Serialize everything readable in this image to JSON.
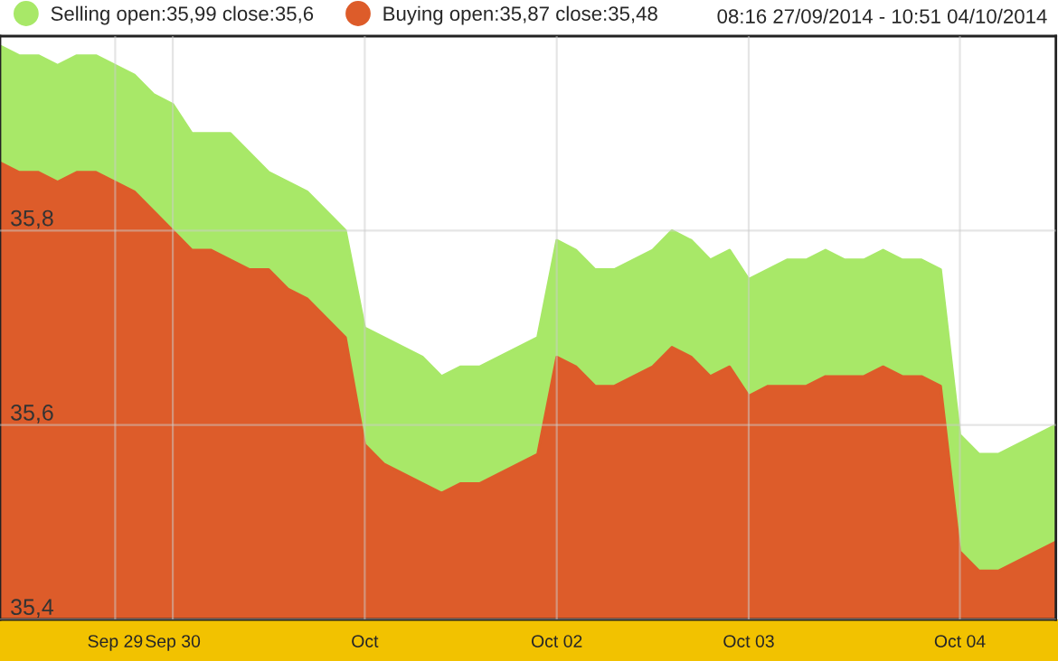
{
  "chart_data": {
    "type": "area",
    "subtitle": "08:16 27/09/2014 - 10:51 04/10/2014",
    "categories": [
      null,
      null,
      null,
      null,
      null,
      null,
      "Sep 29",
      null,
      null,
      "Sep 30",
      null,
      null,
      null,
      null,
      null,
      null,
      null,
      null,
      null,
      "Oct",
      null,
      null,
      null,
      null,
      null,
      null,
      null,
      null,
      null,
      "Oct 02",
      null,
      null,
      null,
      null,
      null,
      null,
      null,
      null,
      null,
      "Oct 03",
      null,
      null,
      null,
      null,
      null,
      null,
      null,
      null,
      null,
      null,
      "Oct 04",
      null,
      null,
      null,
      null,
      null
    ],
    "series": [
      {
        "name": "Selling open:35,99 close:35,6",
        "color": "#a8e868",
        "values": [
          35.99,
          35.98,
          35.98,
          35.97,
          35.98,
          35.98,
          35.97,
          35.96,
          35.94,
          35.93,
          35.9,
          35.9,
          35.9,
          35.88,
          35.86,
          35.85,
          35.84,
          35.82,
          35.8,
          35.7,
          35.69,
          35.68,
          35.67,
          35.65,
          35.66,
          35.66,
          35.67,
          35.68,
          35.69,
          35.79,
          35.78,
          35.76,
          35.76,
          35.77,
          35.78,
          35.8,
          35.79,
          35.77,
          35.78,
          35.75,
          35.76,
          35.77,
          35.77,
          35.78,
          35.77,
          35.77,
          35.78,
          35.77,
          35.77,
          35.76,
          35.59,
          35.57,
          35.57,
          35.58,
          35.59,
          35.6
        ]
      },
      {
        "name": "Buying open:35,87 close:35,48",
        "color": "#dd5c2a",
        "values": [
          35.87,
          35.86,
          35.86,
          35.85,
          35.86,
          35.86,
          35.85,
          35.84,
          35.82,
          35.8,
          35.78,
          35.78,
          35.77,
          35.76,
          35.76,
          35.74,
          35.73,
          35.71,
          35.69,
          35.58,
          35.56,
          35.55,
          35.54,
          35.53,
          35.54,
          35.54,
          35.55,
          35.56,
          35.57,
          35.67,
          35.66,
          35.64,
          35.64,
          35.65,
          35.66,
          35.68,
          35.67,
          35.65,
          35.66,
          35.63,
          35.64,
          35.64,
          35.64,
          35.65,
          35.65,
          35.65,
          35.66,
          35.65,
          35.65,
          35.64,
          35.47,
          35.45,
          35.45,
          35.46,
          35.47,
          35.48
        ]
      }
    ],
    "ylim": [
      35.4,
      36.0
    ],
    "yticks": [
      {
        "value": 35.4,
        "label": "35,4"
      },
      {
        "value": 35.6,
        "label": "35,6"
      },
      {
        "value": 35.8,
        "label": "35,8"
      }
    ],
    "grid": true,
    "legend": "top left"
  }
}
